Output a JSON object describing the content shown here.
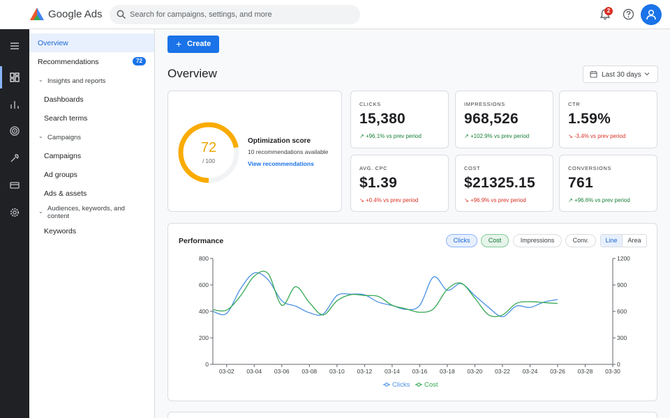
{
  "app": {
    "brand": "Google Ads"
  },
  "search": {
    "placeholder": "Search for campaigns, settings, and more"
  },
  "header": {
    "notifications_count": "2"
  },
  "rail": {
    "items": [
      "menu-icon",
      "overview-icon",
      "chart-icon",
      "goals-icon",
      "tools-icon",
      "billing-icon",
      "admin-icon"
    ]
  },
  "sidebar": {
    "items": [
      {
        "label": "Overview"
      },
      {
        "label": "Recommendations",
        "badge": "72"
      },
      {
        "label": "Insights and reports"
      },
      {
        "label": "Dashboards"
      },
      {
        "label": "Search terms"
      },
      {
        "label": "Campaigns"
      },
      {
        "label": "Campaigns"
      },
      {
        "label": "Ad groups"
      },
      {
        "label": "Ads & assets"
      },
      {
        "label": "Audiences, keywords, and content"
      },
      {
        "label": "Keywords"
      }
    ]
  },
  "toolbar": {
    "create_label": "Create"
  },
  "page": {
    "title": "Overview",
    "date_range": "Last 30 days"
  },
  "optimization": {
    "score": "72",
    "score_max": "/ 100",
    "score_fraction": 0.72,
    "title": "Optimization score",
    "subtitle": "10 recommendations available",
    "link": "View recommendations"
  },
  "metrics": [
    {
      "label": "CLICKS",
      "value": "15,380",
      "delta": "+96.1% vs prev period",
      "trend": "up"
    },
    {
      "label": "IMPRESSIONS",
      "value": "968,526",
      "delta": "+102.9% vs prev period",
      "trend": "up"
    },
    {
      "label": "CTR",
      "value": "1.59%",
      "delta": "-3.4% vs prev period",
      "trend": "down"
    },
    {
      "label": "AVG. CPC",
      "value": "$1.39",
      "delta": "+0.4% vs prev period",
      "trend": "down"
    },
    {
      "label": "COST",
      "value": "$21325.15",
      "delta": "+96.9% vs prev period",
      "trend": "down"
    },
    {
      "label": "CONVERSIONS",
      "value": "761",
      "delta": "+96.6% vs prev period",
      "trend": "up"
    }
  ],
  "performance": {
    "title": "Performance",
    "chips": [
      "Clicks",
      "Cost",
      "Impressions",
      "Conv."
    ],
    "view_toggle": [
      "Line",
      "Area"
    ],
    "selected_view": "Line"
  },
  "colors": {
    "accent": "#1a73e8",
    "clicks": "#4a90e2",
    "cost": "#34a853",
    "gauge": "#f9ab00"
  },
  "chart_data": {
    "type": "line",
    "x": [
      "03-01",
      "03-02",
      "03-03",
      "03-04",
      "03-05",
      "03-06",
      "03-07",
      "03-08",
      "03-09",
      "03-10",
      "03-11",
      "03-12",
      "03-13",
      "03-14",
      "03-15",
      "03-16",
      "03-17",
      "03-18",
      "03-19",
      "03-20",
      "03-21",
      "03-22",
      "03-23",
      "03-24",
      "03-25",
      "03-26"
    ],
    "x_tick_labels": [
      "03-02",
      "03-04",
      "03-06",
      "03-08",
      "03-10",
      "03-12",
      "03-14",
      "03-16",
      "03-18",
      "03-20",
      "03-22",
      "03-24",
      "03-26",
      "03-28",
      "03-30"
    ],
    "x_range": [
      "03-01",
      "03-30"
    ],
    "y_left": {
      "ticks": [
        0,
        200,
        400,
        600,
        800
      ],
      "range": [
        0,
        800
      ]
    },
    "y_right": {
      "ticks": [
        0,
        300,
        600,
        900,
        1200
      ],
      "range": [
        0,
        1200
      ]
    },
    "series": [
      {
        "name": "Clicks",
        "axis": "left",
        "values": [
          400,
          385,
          570,
          690,
          640,
          480,
          440,
          390,
          380,
          520,
          530,
          525,
          470,
          445,
          415,
          445,
          660,
          560,
          610,
          520,
          430,
          360,
          440,
          430,
          470,
          490
        ]
      },
      {
        "name": "Cost",
        "axis": "right",
        "values": [
          620,
          615,
          775,
          1000,
          1030,
          670,
          880,
          700,
          560,
          720,
          790,
          780,
          770,
          670,
          630,
          590,
          630,
          850,
          920,
          750,
          560,
          560,
          690,
          710,
          700,
          690
        ]
      }
    ],
    "legend": "bottom",
    "grid": false
  }
}
